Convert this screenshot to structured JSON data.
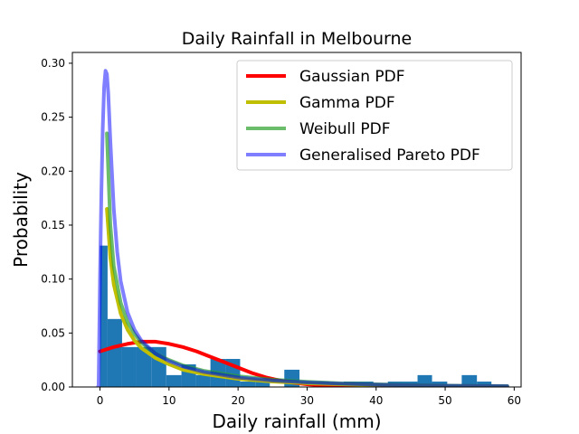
{
  "chart_data": {
    "type": "histogram+line",
    "title": "Daily Rainfall in Melbourne",
    "xlabel": "Daily rainfall (mm)",
    "ylabel": "Probability",
    "xlim": [
      -4,
      61
    ],
    "ylim": [
      0,
      0.31
    ],
    "xticks": [
      0,
      10,
      20,
      30,
      40,
      50,
      60
    ],
    "yticks": [
      0.0,
      0.05,
      0.1,
      0.15,
      0.2,
      0.25,
      0.3
    ],
    "ytick_labels": [
      "0.00",
      "0.05",
      "0.10",
      "0.15",
      "0.20",
      "0.25",
      "0.30"
    ],
    "grid": false,
    "legend_placement": "top-right",
    "histogram": {
      "color": "#1f77b4",
      "bins": [
        {
          "x0": 0.0,
          "x1": 1.1,
          "y": 0.131
        },
        {
          "x0": 1.1,
          "x1": 3.2,
          "y": 0.063
        },
        {
          "x0": 3.2,
          "x1": 5.3,
          "y": 0.037
        },
        {
          "x0": 5.3,
          "x1": 7.5,
          "y": 0.037
        },
        {
          "x0": 7.5,
          "x1": 9.6,
          "y": 0.037
        },
        {
          "x0": 9.6,
          "x1": 11.8,
          "y": 0.011
        },
        {
          "x0": 11.8,
          "x1": 13.9,
          "y": 0.021
        },
        {
          "x0": 13.9,
          "x1": 16.0,
          "y": 0.011
        },
        {
          "x0": 16.0,
          "x1": 18.2,
          "y": 0.026
        },
        {
          "x0": 18.2,
          "x1": 20.3,
          "y": 0.026
        },
        {
          "x0": 20.3,
          "x1": 22.5,
          "y": 0.005
        },
        {
          "x0": 22.5,
          "x1": 24.6,
          "y": 0.005
        },
        {
          "x0": 24.6,
          "x1": 26.7,
          "y": 0.0
        },
        {
          "x0": 26.7,
          "x1": 28.9,
          "y": 0.016
        },
        {
          "x0": 28.9,
          "x1": 31.0,
          "y": 0.0
        },
        {
          "x0": 31.0,
          "x1": 33.2,
          "y": 0.005
        },
        {
          "x0": 33.2,
          "x1": 35.3,
          "y": 0.0
        },
        {
          "x0": 35.3,
          "x1": 37.4,
          "y": 0.005
        },
        {
          "x0": 37.4,
          "x1": 39.6,
          "y": 0.005
        },
        {
          "x0": 39.6,
          "x1": 41.7,
          "y": 0.0
        },
        {
          "x0": 41.7,
          "x1": 43.9,
          "y": 0.005
        },
        {
          "x0": 43.9,
          "x1": 46.0,
          "y": 0.005
        },
        {
          "x0": 46.0,
          "x1": 48.1,
          "y": 0.011
        },
        {
          "x0": 48.1,
          "x1": 50.3,
          "y": 0.005
        },
        {
          "x0": 50.3,
          "x1": 52.4,
          "y": 0.0
        },
        {
          "x0": 52.4,
          "x1": 54.6,
          "y": 0.011
        },
        {
          "x0": 54.6,
          "x1": 56.7,
          "y": 0.005
        },
        {
          "x0": 56.7,
          "x1": 58.8,
          "y": 0.0
        }
      ]
    },
    "series": [
      {
        "name": "Gaussian PDF",
        "color": "#ff0000",
        "alpha": 1.0,
        "x": [
          0.0,
          2.0,
          4.0,
          5.0,
          6.0,
          7.0,
          8.0,
          9.0,
          10.0,
          12.0,
          14.0,
          16.0,
          18.0,
          20.0,
          22.0,
          24.0,
          26.0,
          28.0,
          30.0,
          33.0,
          36.0,
          40.0,
          45.0,
          50.0,
          55.0,
          59.0
        ],
        "y": [
          0.033,
          0.037,
          0.04,
          0.041,
          0.042,
          0.042,
          0.042,
          0.041,
          0.04,
          0.037,
          0.033,
          0.028,
          0.023,
          0.018,
          0.013,
          0.009,
          0.006,
          0.004,
          0.0025,
          0.0012,
          0.0004,
          0.0001,
          0.0,
          0.0,
          0.0,
          0.0
        ]
      },
      {
        "name": "Gamma PDF",
        "color": "#bfbf00",
        "alpha": 1.0,
        "x": [
          1.0,
          1.5,
          2.0,
          3.0,
          4.0,
          5.0,
          6.0,
          8.0,
          10.0,
          12.0,
          15.0,
          20.0,
          25.0,
          30.0,
          35.0,
          40.0,
          45.0,
          50.0,
          55.0,
          59.0
        ],
        "y": [
          0.165,
          0.12,
          0.095,
          0.068,
          0.053,
          0.043,
          0.036,
          0.027,
          0.021,
          0.016,
          0.012,
          0.0075,
          0.005,
          0.0035,
          0.0025,
          0.0018,
          0.0013,
          0.001,
          0.0007,
          0.0005
        ]
      },
      {
        "name": "Weibull PDF",
        "color": "#2ca02c",
        "alpha": 0.7,
        "x": [
          1.0,
          1.5,
          2.0,
          3.0,
          4.0,
          5.0,
          6.0,
          8.0,
          10.0,
          12.0,
          15.0,
          20.0,
          25.0,
          30.0,
          35.0,
          40.0,
          45.0,
          50.0,
          55.0,
          59.0
        ],
        "y": [
          0.235,
          0.15,
          0.112,
          0.078,
          0.06,
          0.049,
          0.041,
          0.031,
          0.025,
          0.02,
          0.015,
          0.01,
          0.0068,
          0.0048,
          0.0034,
          0.0025,
          0.0018,
          0.0013,
          0.001,
          0.0008
        ]
      },
      {
        "name": "Generalised Pareto PDF",
        "color": "#0000ff",
        "alpha": 0.5,
        "x": [
          -0.3,
          -0.2,
          0.0,
          0.2,
          0.4,
          0.6,
          0.8,
          1.0,
          1.2,
          1.5,
          2.0,
          2.5,
          3.0,
          4.0,
          5.0,
          6.0,
          8.0,
          10.0,
          12.0,
          15.0,
          20.0,
          25.0,
          30.0,
          35.0,
          40.0,
          45.0,
          50.0,
          55.0,
          59.0
        ],
        "y": [
          0.0,
          0.0,
          0.1,
          0.18,
          0.24,
          0.278,
          0.293,
          0.29,
          0.272,
          0.228,
          0.165,
          0.125,
          0.098,
          0.069,
          0.053,
          0.043,
          0.031,
          0.024,
          0.019,
          0.014,
          0.0088,
          0.006,
          0.0042,
          0.003,
          0.0022,
          0.0016,
          0.0012,
          0.0009,
          0.0007
        ]
      }
    ]
  }
}
